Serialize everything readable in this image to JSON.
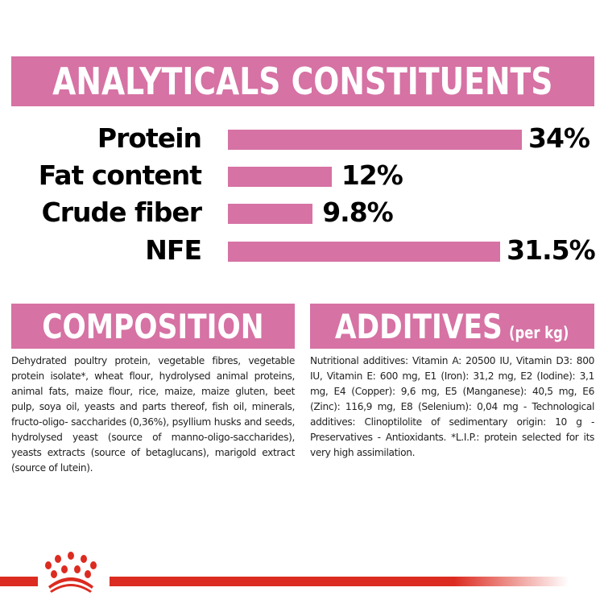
{
  "header": {
    "title": "ANALYTICALS CONSTITUENTS"
  },
  "chart_data": {
    "type": "bar",
    "orientation": "horizontal",
    "categories": [
      "Protein",
      "Fat content",
      "Crude fiber",
      "NFE"
    ],
    "values": [
      34,
      12,
      9.8,
      31.5
    ],
    "value_labels": [
      "34%",
      "12%",
      "9.8%",
      "31.5%"
    ],
    "unit": "%",
    "grid": false,
    "bar_color": "#d672a4"
  },
  "composition": {
    "title": "COMPOSITION",
    "text": "Dehydrated poultry protein, vegetable fibres, vegetable protein isolate*, wheat flour, hydrolysed animal proteins, animal fats, maize flour, rice, maize, maize gluten, beet pulp, soya oil, yeasts and parts thereof, fish oil, minerals, fructo-oligo- saccharides (0,36%), psyllium husks and seeds, hydrolysed yeast (source of manno-oligo-saccharides), yeasts extracts (source of betaglucans), marigold extract (source of lutein)."
  },
  "additives": {
    "title": "ADDITIVES",
    "subtitle": "(per kg)",
    "text": "Nutritional additives: Vitamin A: 20500 IU, Vitamin D3: 800 IU, Vitamin E: 600 mg, E1 (Iron): 31,2 mg, E2 (Iodine): 3,1 mg, E4 (Copper): 9,6 mg, E5 (Manganese): 40,5 mg, E6 (Zinc): 116,9 mg, E8 (Selenium): 0,04 mg - Technological additives: Clinoptilolite of sedimentary origin: 10 g - Preservatives - Antioxidants. *L.I.P.: protein selected for its very high assimilation."
  },
  "footer": {
    "logo_icon": "crown-logo-icon",
    "line_color": "#dc2b20"
  },
  "colors": {
    "accent": "#d672a4",
    "brand_red": "#dc2b20"
  }
}
